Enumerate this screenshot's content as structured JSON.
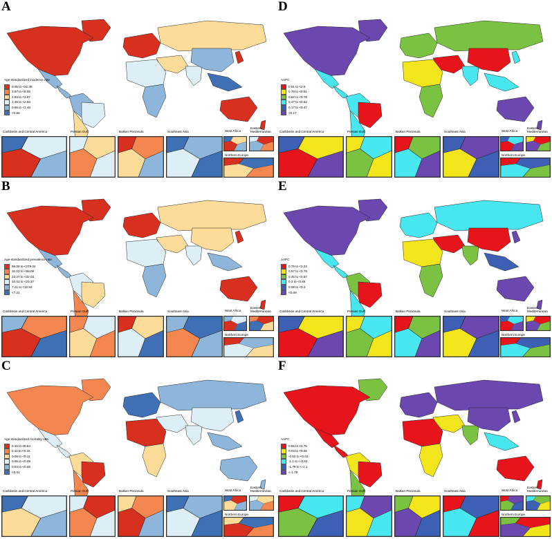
{
  "panels": [
    {
      "letter": "A",
      "legend_title": "Age-standardized incidence rate",
      "legend": [
        {
          "label": "8.05 to <32.36",
          "color": "#d7301f"
        },
        {
          "label": "3.87 to <8.05",
          "color": "#f4874f"
        },
        {
          "label": "2.83 to <3.87",
          "color": "#fddc9a"
        },
        {
          "label": "1.48 to <2.83",
          "color": "#deeef6"
        },
        {
          "label": "0.56 to <1.48",
          "color": "#8db6da"
        },
        {
          "label": "<0.56",
          "color": "#3f6fb4"
        }
      ]
    },
    {
      "letter": "B",
      "legend_title": "Age-standardized prevalence rate",
      "legend": [
        {
          "label": "68.09 to <279.04",
          "color": "#d7301f"
        },
        {
          "label": "32.03 to <68.09",
          "color": "#f4874f"
        },
        {
          "label": "23.37 to <32.03",
          "color": "#fddc9a"
        },
        {
          "label": "10.53 to <23.37",
          "color": "#deeef6"
        },
        {
          "label": "7.21 to <10.53",
          "color": "#8db6da"
        },
        {
          "label": "<7.21",
          "color": "#3f6fb4"
        }
      ]
    },
    {
      "letter": "C",
      "legend_title": "Age-standardized mortality rate",
      "legend": [
        {
          "label": "0.16 to <0.94",
          "color": "#d7301f"
        },
        {
          "label": "0.11 to <0.16",
          "color": "#f4874f"
        },
        {
          "label": "0.09 to <0.11",
          "color": "#fddc9a"
        },
        {
          "label": "0.06 to <0.09",
          "color": "#deeef6"
        },
        {
          "label": "0.04 to <0.06",
          "color": "#8db6da"
        },
        {
          "label": "<0.04",
          "color": "#3f6fb4"
        }
      ]
    },
    {
      "letter": "D",
      "legend_title": "AAPC",
      "legend": [
        {
          "label": "0.91 to <2.6",
          "color": "#e8141c"
        },
        {
          "label": "0.78 to <0.91",
          "color": "#f2e51b"
        },
        {
          "label": "0.62 to <0.78",
          "color": "#7cc242"
        },
        {
          "label": "0.47 to <0.62",
          "color": "#48e6ee"
        },
        {
          "label": "0.17 to <0.47",
          "color": "#3d5fb4"
        },
        {
          "label": "<0.17",
          "color": "#6a48b0"
        }
      ]
    },
    {
      "letter": "E",
      "legend_title": "AAPC",
      "legend": [
        {
          "label": "0.79 to <2.23",
          "color": "#e8141c"
        },
        {
          "label": "0.57 to <0.79",
          "color": "#f2e51b"
        },
        {
          "label": "0.45 to <0.57",
          "color": "#7cc242"
        },
        {
          "label": "0.3 to <0.45",
          "color": "#48e6ee"
        },
        {
          "label": "0.09 to <0.3",
          "color": "#3d5fb4"
        },
        {
          "label": "<0.09",
          "color": "#6a48b0"
        }
      ]
    },
    {
      "letter": "F",
      "legend_title": "AAPC",
      "legend": [
        {
          "label": "0.55 to <2.75",
          "color": "#e8141c"
        },
        {
          "label": "0.03 to <0.55",
          "color": "#f2e51b"
        },
        {
          "label": "-0.53 to <0.03",
          "color": "#7cc242"
        },
        {
          "label": "-1.1 to <-0.53",
          "color": "#48e6ee"
        },
        {
          "label": "-1.79 to <-1.1",
          "color": "#3d5fb4"
        },
        {
          "label": "<-1.79",
          "color": "#6a48b0"
        }
      ]
    }
  ],
  "inset_labels": {
    "caribbean": "Caribbean and Central America",
    "persian_gulf": "Persian Gulf",
    "balkan": "Balkan Peninsula",
    "southeast_asia": "Southeast Asia",
    "west_africa": "West Africa",
    "eastern_med": "Eastern Mediterranean",
    "northern_europe": "Northern Europe"
  },
  "fills": {
    "A": {
      "namerica": "#d7301f",
      "greenland": "#d7301f",
      "samerica": "#8db6da",
      "brazil": "#deeef6",
      "southcone": "#fddc9a",
      "europe": "#d7301f",
      "russia": "#fddc9a",
      "africa_n": "#deeef6",
      "africa_s": "#8db6da",
      "mideast": "#fddc9a",
      "india": "#deeef6",
      "china": "#8db6da",
      "seasia": "#3f6fb4",
      "japan": "#d7301f",
      "australia": "#d7301f",
      "nz": "#d7301f",
      "centam": "#8db6da",
      "mexico": "#8db6da",
      "c1": "#3f6fb4",
      "c2": "#d7301f",
      "c3": "#f4874f",
      "c4": "#deeef6",
      "c5": "#fddc9a",
      "c6": "#8db6da"
    },
    "B": {
      "namerica": "#d7301f",
      "greenland": "#d7301f",
      "samerica": "#deeef6",
      "brazil": "#fddc9a",
      "southcone": "#f4874f",
      "europe": "#d7301f",
      "russia": "#fddc9a",
      "africa_n": "#deeef6",
      "africa_s": "#8db6da",
      "mideast": "#fddc9a",
      "india": "#deeef6",
      "china": "#fddc9a",
      "seasia": "#8db6da",
      "japan": "#d7301f",
      "australia": "#d7301f",
      "nz": "#d7301f",
      "centam": "#8db6da",
      "mexico": "#8db6da",
      "c1": "#8db6da",
      "c2": "#d7301f",
      "c3": "#fddc9a",
      "c4": "#f4874f",
      "c5": "#deeef6",
      "c6": "#3f6fb4"
    },
    "C": {
      "namerica": "#f4874f",
      "greenland": "#f4874f",
      "samerica": "#fddc9a",
      "brazil": "#d7301f",
      "southcone": "#f4874f",
      "europe": "#3f6fb4",
      "russia": "#8db6da",
      "africa_n": "#d7301f",
      "africa_s": "#fddc9a",
      "mideast": "#deeef6",
      "india": "#deeef6",
      "china": "#deeef6",
      "seasia": "#8db6da",
      "japan": "#3f6fb4",
      "australia": "#8db6da",
      "nz": "#8db6da",
      "centam": "#deeef6",
      "mexico": "#deeef6",
      "c1": "#3f6fb4",
      "c2": "#fddc9a",
      "c3": "#f4874f",
      "c4": "#deeef6",
      "c5": "#d7301f",
      "c6": "#8db6da"
    },
    "D": {
      "namerica": "#6a48b0",
      "greenland": "#6a48b0",
      "samerica": "#48e6ee",
      "brazil": "#e8141c",
      "southcone": "#48e6ee",
      "europe": "#7cc242",
      "russia": "#7cc242",
      "africa_n": "#f2e51b",
      "africa_s": "#7cc242",
      "mideast": "#e8141c",
      "india": "#48e6ee",
      "china": "#e8141c",
      "seasia": "#48e6ee",
      "japan": "#48e6ee",
      "australia": "#6a48b0",
      "nz": "#6a48b0",
      "centam": "#48e6ee",
      "mexico": "#48e6ee",
      "c1": "#3d5fb4",
      "c2": "#e8141c",
      "c3": "#7cc242",
      "c4": "#f2e51b",
      "c5": "#48e6ee",
      "c6": "#6a48b0"
    },
    "E": {
      "namerica": "#6a48b0",
      "greenland": "#6a48b0",
      "samerica": "#7cc242",
      "brazil": "#e8141c",
      "southcone": "#48e6ee",
      "europe": "#48e6ee",
      "russia": "#48e6ee",
      "africa_n": "#f2e51b",
      "africa_s": "#7cc242",
      "mideast": "#e8141c",
      "india": "#7cc242",
      "china": "#e8141c",
      "seasia": "#3d5fb4",
      "japan": "#6a48b0",
      "australia": "#6a48b0",
      "nz": "#6a48b0",
      "centam": "#48e6ee",
      "mexico": "#48e6ee",
      "c1": "#3d5fb4",
      "c2": "#e8141c",
      "c3": "#7cc242",
      "c4": "#f2e51b",
      "c5": "#48e6ee",
      "c6": "#6a48b0"
    },
    "F": {
      "namerica": "#e8141c",
      "greenland": "#7cc242",
      "samerica": "#f2e51b",
      "brazil": "#e8141c",
      "southcone": "#7cc242",
      "europe": "#6a48b0",
      "russia": "#6a48b0",
      "africa_n": "#e8141c",
      "africa_s": "#f2e51b",
      "mideast": "#f2e51b",
      "india": "#7cc242",
      "china": "#6a48b0",
      "seasia": "#48e6ee",
      "japan": "#6a48b0",
      "australia": "#e8141c",
      "nz": "#e8141c",
      "centam": "#e8141c",
      "mexico": "#e8141c",
      "c1": "#e8141c",
      "c2": "#7cc242",
      "c3": "#f2e51b",
      "c4": "#48e6ee",
      "c5": "#6a48b0",
      "c6": "#3d5fb4"
    }
  }
}
